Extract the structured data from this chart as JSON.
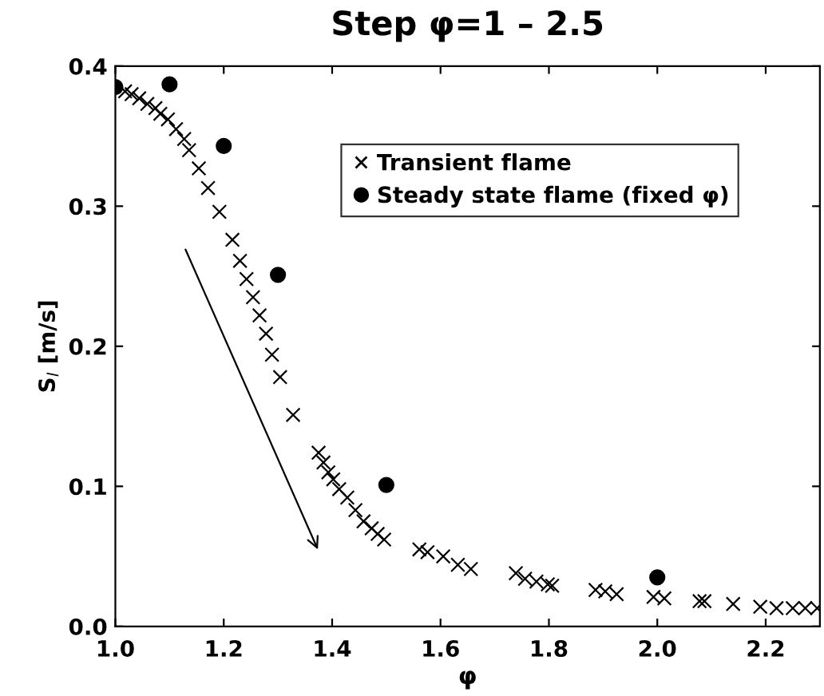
{
  "chart_data": {
    "type": "scatter",
    "title": "Step φ=1 – 2.5",
    "xlabel": "φ",
    "ylabel": "S$_{l}$ [m/s]",
    "xlim": [
      1.0,
      2.3
    ],
    "xticks": [
      {
        "value": 1.0,
        "label": "1.0"
      },
      1.2,
      1.4,
      1.6,
      1.8,
      {
        "value": 2.0,
        "label": "2.0"
      },
      2.2
    ],
    "ylim": [
      0.0,
      0.4
    ],
    "yticks": [
      {
        "value": 0.0,
        "label": "0.0"
      },
      0.1,
      0.2,
      0.3,
      0.4
    ],
    "grid": false,
    "legend": "top right",
    "series": [
      {
        "name": "Transient flame",
        "color": "#000000",
        "marker": "cross",
        "x": [
          1.018,
          1.03,
          1.044,
          1.059,
          1.074,
          1.083,
          1.097,
          1.112,
          1.127,
          1.136,
          1.154,
          1.171,
          1.192,
          1.216,
          1.23,
          1.242,
          1.254,
          1.266,
          1.278,
          1.289,
          1.304,
          1.328,
          1.375,
          1.384,
          1.393,
          1.402,
          1.413,
          1.428,
          1.443,
          1.458,
          1.473,
          1.484,
          1.496,
          1.561,
          1.576,
          1.605,
          1.632,
          1.656,
          1.739,
          1.756,
          1.777,
          1.798,
          1.806,
          1.886,
          1.904,
          1.925,
          1.993,
          2.013,
          2.078,
          2.087,
          2.14,
          2.19,
          2.22,
          2.25,
          2.273,
          2.295
        ],
        "values": [
          0.382,
          0.38,
          0.377,
          0.373,
          0.37,
          0.366,
          0.362,
          0.355,
          0.348,
          0.34,
          0.327,
          0.313,
          0.296,
          0.276,
          0.261,
          0.248,
          0.235,
          0.222,
          0.209,
          0.194,
          0.178,
          0.151,
          0.124,
          0.117,
          0.11,
          0.105,
          0.098,
          0.092,
          0.083,
          0.075,
          0.07,
          0.066,
          0.062,
          0.055,
          0.053,
          0.05,
          0.044,
          0.041,
          0.038,
          0.034,
          0.032,
          0.03,
          0.029,
          0.026,
          0.025,
          0.023,
          0.021,
          0.02,
          0.018,
          0.018,
          0.016,
          0.014,
          0.013,
          0.013,
          0.013,
          0.013
        ]
      },
      {
        "name": "Steady state flame (fixed φ)",
        "color": "#000000",
        "marker": "circle",
        "x": [
          1.0,
          1.1,
          1.2,
          1.3,
          1.5,
          2.0
        ],
        "values": [
          0.385,
          0.387,
          0.343,
          0.251,
          0.101,
          0.035
        ]
      }
    ]
  }
}
